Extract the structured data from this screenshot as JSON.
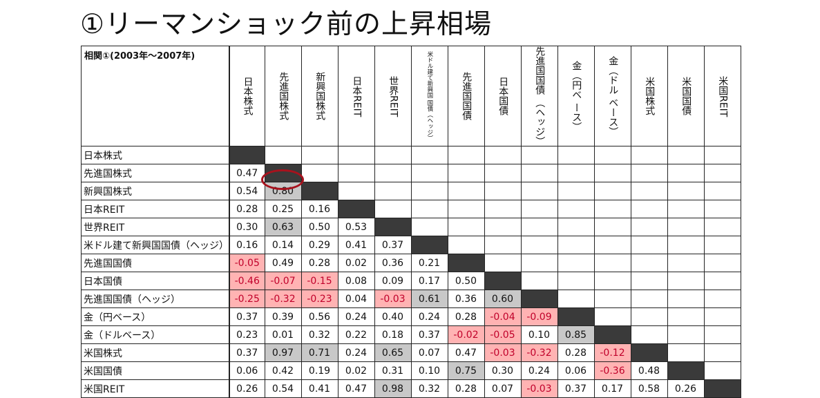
{
  "title": "①リーマンショック前の上昇相場",
  "table": {
    "corner_label": "相関①(2003年～2007年)",
    "columns": [
      "日本株式",
      "先進国株式",
      "新興国株式",
      "日本REIT",
      "世界REIT",
      "米ドル建て新興国 国債（ヘッジ）",
      "先進国国債",
      "日本国債",
      "先進国国債 （ヘッジ）",
      "金（円ベ ース）",
      "金（ドル ベース）",
      "米国株式",
      "米国国債",
      "米国REIT"
    ],
    "rows": [
      {
        "label": "日本株式",
        "values": []
      },
      {
        "label": "先進国株式",
        "values": [
          "0.47"
        ]
      },
      {
        "label": "新興国株式",
        "values": [
          "0.54",
          "0.80"
        ]
      },
      {
        "label": "日本REIT",
        "values": [
          "0.28",
          "0.25",
          "0.16"
        ]
      },
      {
        "label": "世界REIT",
        "values": [
          "0.30",
          "0.63",
          "0.50",
          "0.53"
        ]
      },
      {
        "label": "米ドル建て新興国国債（ヘッジ）",
        "values": [
          "0.16",
          "0.14",
          "0.29",
          "0.41",
          "0.37"
        ]
      },
      {
        "label": "先進国国債",
        "values": [
          "-0.05",
          "0.49",
          "0.28",
          "0.02",
          "0.36",
          "0.21"
        ]
      },
      {
        "label": "日本国債",
        "values": [
          "-0.46",
          "-0.07",
          "-0.15",
          "0.08",
          "0.09",
          "0.17",
          "0.50"
        ]
      },
      {
        "label": "先進国国債（ヘッジ）",
        "values": [
          "-0.25",
          "-0.32",
          "-0.23",
          "0.04",
          "-0.03",
          "0.61",
          "0.36",
          "0.60"
        ]
      },
      {
        "label": "金（円ベース）",
        "values": [
          "0.37",
          "0.39",
          "0.56",
          "0.24",
          "0.40",
          "0.24",
          "0.28",
          "-0.04",
          "-0.09"
        ]
      },
      {
        "label": "金（ドルベース）",
        "values": [
          "0.23",
          "0.01",
          "0.32",
          "0.22",
          "0.18",
          "0.37",
          "-0.02",
          "-0.05",
          "0.10",
          "0.85"
        ]
      },
      {
        "label": "米国株式",
        "values": [
          "0.37",
          "0.97",
          "0.71",
          "0.24",
          "0.65",
          "0.07",
          "0.47",
          "-0.03",
          "-0.32",
          "0.28",
          "-0.12"
        ]
      },
      {
        "label": "米国国債",
        "values": [
          "0.06",
          "0.42",
          "0.19",
          "0.02",
          "0.31",
          "0.10",
          "0.75",
          "0.30",
          "0.24",
          "0.06",
          "-0.36",
          "0.48"
        ]
      },
      {
        "label": "米国REIT",
        "values": [
          "0.26",
          "0.54",
          "0.41",
          "0.47",
          "0.98",
          "0.32",
          "0.28",
          "0.07",
          "-0.03",
          "0.37",
          "0.17",
          "0.58",
          "0.26"
        ]
      }
    ]
  },
  "colors": {
    "diagonal": "#3a3a3a",
    "negative_fill": "#ffb3b3",
    "negative_text": "#c0002a",
    "high_fill": "#c8c8c8",
    "ring": "#a8121d"
  },
  "high_correlation_threshold": 0.6,
  "circled_cell": {
    "row": 3,
    "col": 1
  }
}
